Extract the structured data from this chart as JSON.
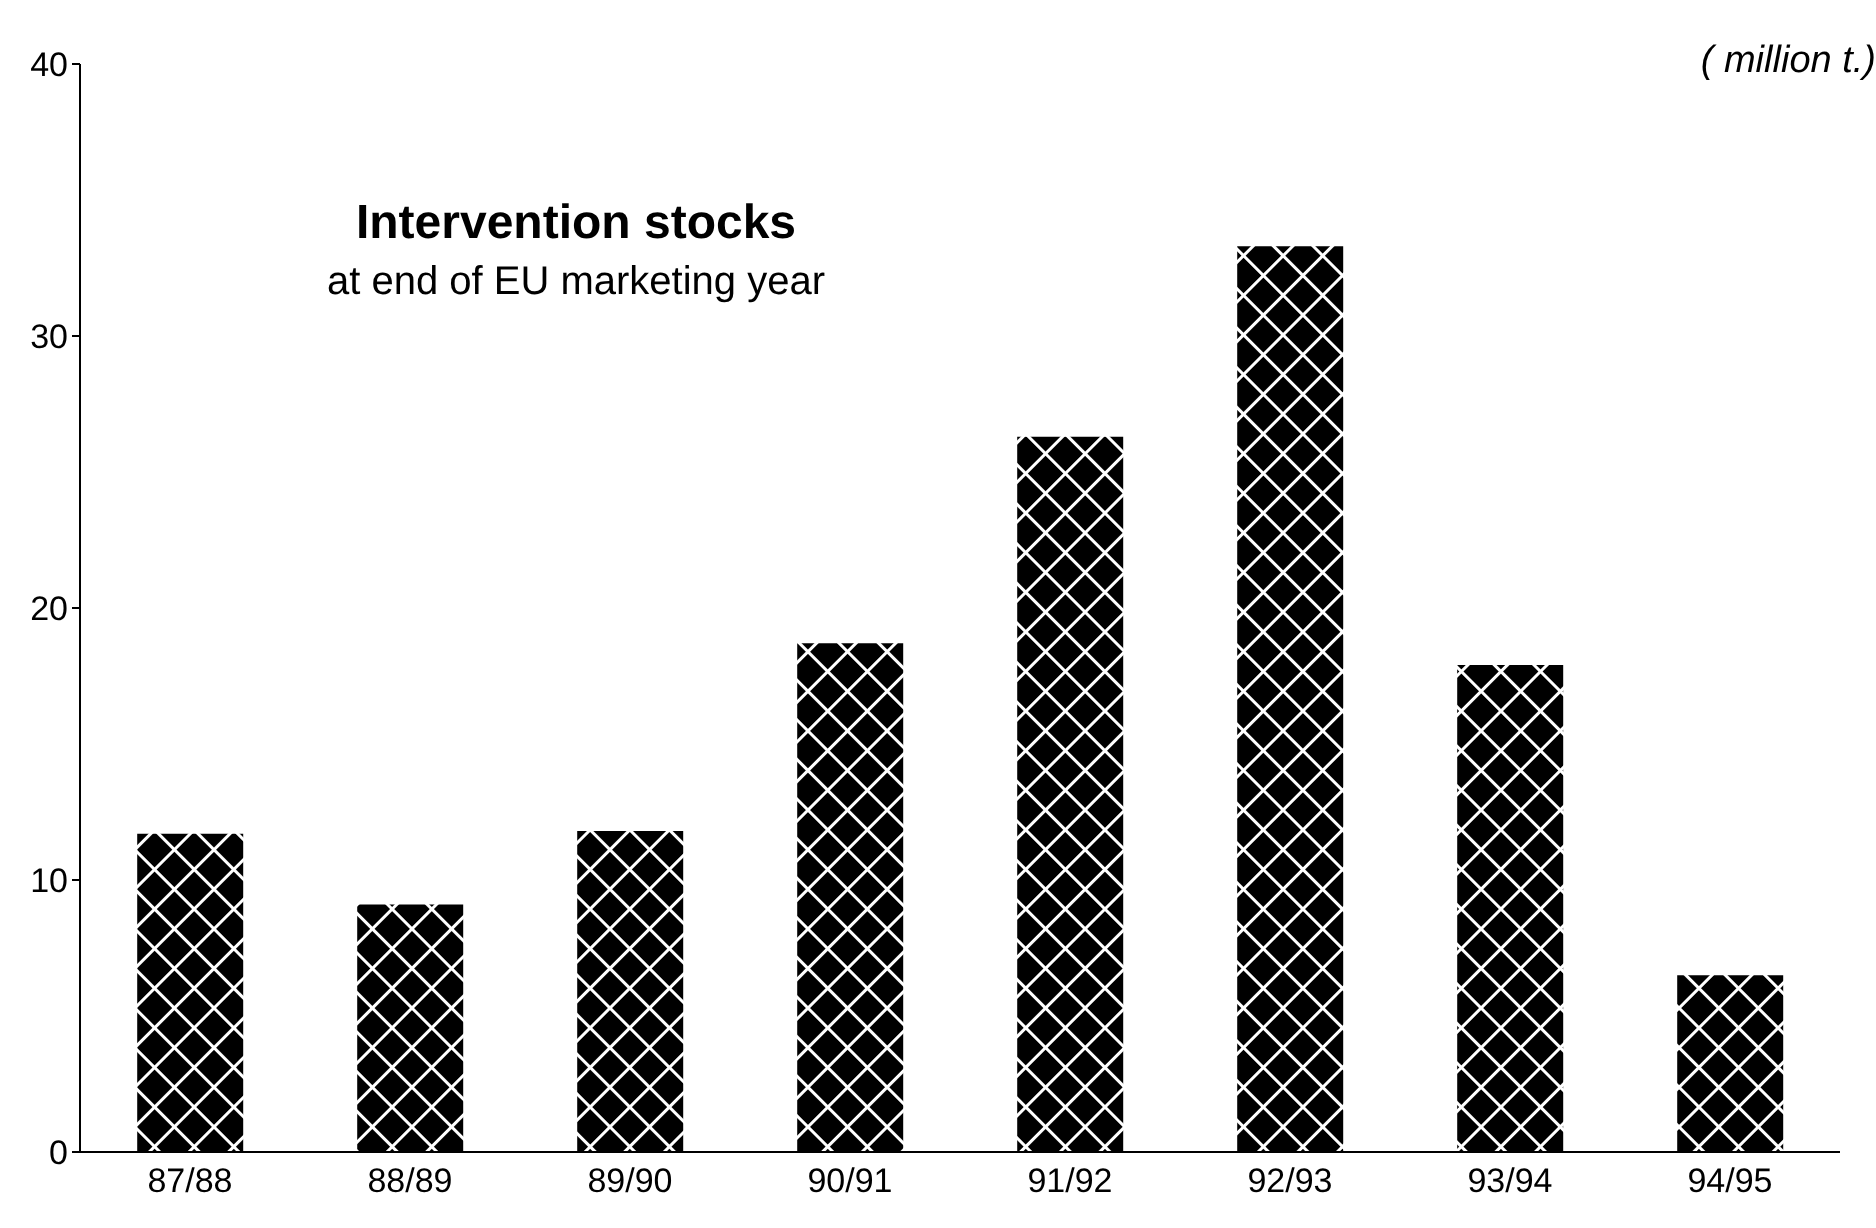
{
  "chart_data": {
    "type": "bar",
    "title": "Intervention stocks",
    "subtitle": "at end of EU marketing year",
    "ylabel": "( million t.)",
    "categories": [
      "87/88",
      "88/89",
      "89/90",
      "90/91",
      "91/92",
      "92/93",
      "93/94",
      "94/95"
    ],
    "values": [
      11.7,
      9.1,
      11.8,
      18.7,
      26.3,
      33.3,
      17.9,
      6.5
    ],
    "color": "#000000",
    "ylim": [
      0,
      40
    ],
    "yticks": [
      0,
      10,
      20,
      30,
      40
    ]
  }
}
